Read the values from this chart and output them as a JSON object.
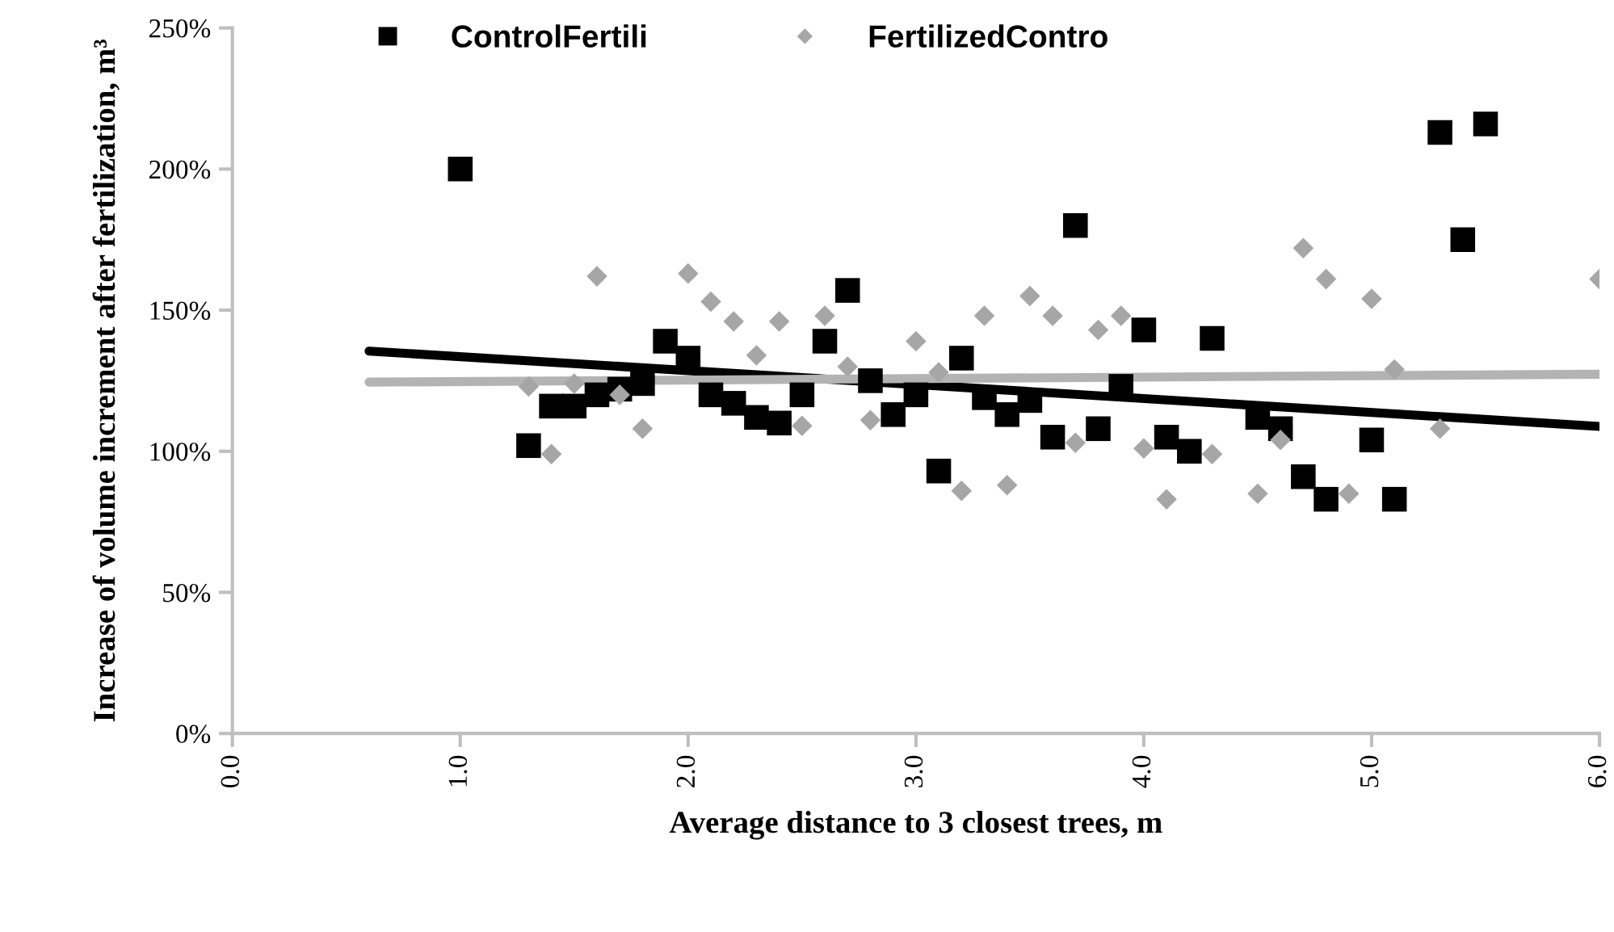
{
  "chart_data": {
    "type": "scatter",
    "xlabel": "Average distance to 3 closest trees, m",
    "ylabel": "Increase of volume increment after fertilization, m³",
    "xlim": [
      0,
      6
    ],
    "ylim": [
      0,
      250
    ],
    "xticks": [
      {
        "value": 0,
        "label": "0.0"
      },
      {
        "value": 1,
        "label": "1.0"
      },
      {
        "value": 2,
        "label": "2.0"
      },
      {
        "value": 3,
        "label": "3.0"
      },
      {
        "value": 4,
        "label": "4.0"
      },
      {
        "value": 5,
        "label": "5.0"
      },
      {
        "value": 6,
        "label": "6.0"
      }
    ],
    "yticks": [
      {
        "value": 0,
        "label": "0%"
      },
      {
        "value": 50,
        "label": "50%"
      },
      {
        "value": 100,
        "label": "100%"
      },
      {
        "value": 150,
        "label": "150%"
      },
      {
        "value": 200,
        "label": "200%"
      },
      {
        "value": 250,
        "label": "250%"
      }
    ],
    "grid": false,
    "legend": "top",
    "series": [
      {
        "name": "ControlFertili",
        "color": "#000000",
        "marker": "square",
        "x": [
          1.0,
          1.3,
          1.4,
          1.5,
          1.6,
          1.7,
          1.8,
          1.9,
          2.0,
          2.1,
          2.2,
          2.3,
          2.4,
          2.5,
          2.6,
          2.7,
          2.8,
          2.9,
          3.0,
          3.1,
          3.2,
          3.3,
          3.4,
          3.5,
          3.6,
          3.7,
          3.8,
          3.9,
          4.0,
          4.1,
          4.2,
          4.3,
          4.5,
          4.6,
          4.7,
          4.8,
          5.0,
          5.1,
          5.3,
          5.4,
          5.5
        ],
        "values": [
          200,
          102,
          116,
          116,
          120,
          122,
          124,
          139,
          133,
          120,
          117,
          112,
          110,
          120,
          139,
          157,
          125,
          113,
          120,
          93,
          133,
          119,
          113,
          118,
          105,
          180,
          108,
          123,
          143,
          105,
          100,
          140,
          112,
          108,
          91,
          83,
          104,
          83,
          213,
          175,
          216
        ]
      },
      {
        "name": "FertilizedContro",
        "color": "#a6a6a6",
        "marker": "diamond",
        "x": [
          1.3,
          1.4,
          1.5,
          1.6,
          1.7,
          1.8,
          2.0,
          2.1,
          2.2,
          2.3,
          2.4,
          2.5,
          2.6,
          2.7,
          2.8,
          3.0,
          3.1,
          3.2,
          3.3,
          3.4,
          3.5,
          3.6,
          3.7,
          3.8,
          3.9,
          4.0,
          4.1,
          4.3,
          4.5,
          4.6,
          4.7,
          4.8,
          4.9,
          5.0,
          5.1,
          5.3,
          6.0
        ],
        "values": [
          123,
          99,
          124,
          162,
          120,
          108,
          163,
          153,
          146,
          134,
          146,
          109,
          148,
          130,
          111,
          139,
          128,
          86,
          148,
          88,
          155,
          148,
          103,
          143,
          148,
          101,
          83,
          99,
          85,
          104,
          172,
          161,
          85,
          154,
          129,
          108,
          161
        ]
      },
      {
        "type": "line",
        "color": "#000000",
        "x": [
          0.6,
          6.0
        ],
        "values": [
          135.5,
          108.8
        ]
      },
      {
        "type": "line",
        "color": "#b3b3b3",
        "x": [
          0.6,
          6.0
        ],
        "values": [
          124.5,
          127.3
        ]
      }
    ]
  }
}
